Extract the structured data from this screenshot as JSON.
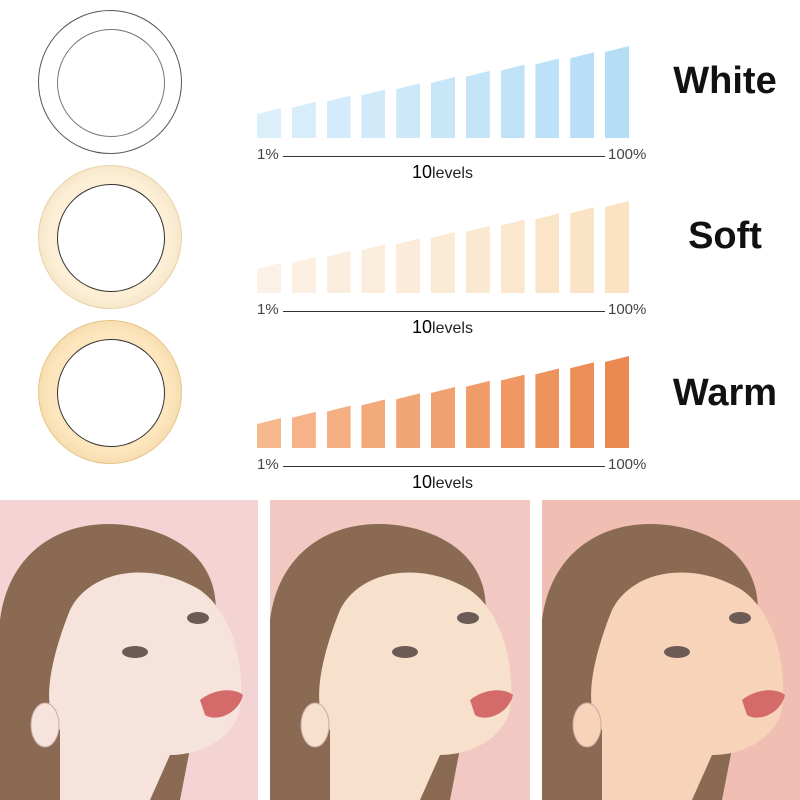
{
  "modes": [
    {
      "name": "White",
      "min_label": "1%",
      "max_label": "100%",
      "levels_number": "10",
      "levels_word": "levels",
      "ring_color": "#ffffff",
      "ring_border": "#555555",
      "bar_light": "#dbeffb",
      "bar_dark": "#b5ddf5"
    },
    {
      "name": "Soft",
      "min_label": "1%",
      "max_label": "100%",
      "levels_number": "10",
      "levels_word": "levels",
      "ring_color": "#fcefd6",
      "ring_border": "#e8d2a8",
      "bar_light": "#fbf1e6",
      "bar_dark": "#fbe2c2"
    },
    {
      "name": "Warm",
      "min_label": "1%",
      "max_label": "100%",
      "levels_number": "10",
      "levels_word": "levels",
      "ring_color": "#fde6bd",
      "ring_border": "#e6c48a",
      "bar_light": "#f7b88e",
      "bar_dark": "#eb8a50"
    }
  ],
  "bar_count": 11,
  "photos": [
    {
      "name": "white-light-portrait",
      "bg": "#f3d3d3",
      "skin": "#f6e4dc"
    },
    {
      "name": "soft-light-portrait",
      "bg": "#f1c8c2",
      "skin": "#f7e0cc"
    },
    {
      "name": "warm-light-portrait",
      "bg": "#f0beb3",
      "skin": "#f6d3b9"
    }
  ]
}
